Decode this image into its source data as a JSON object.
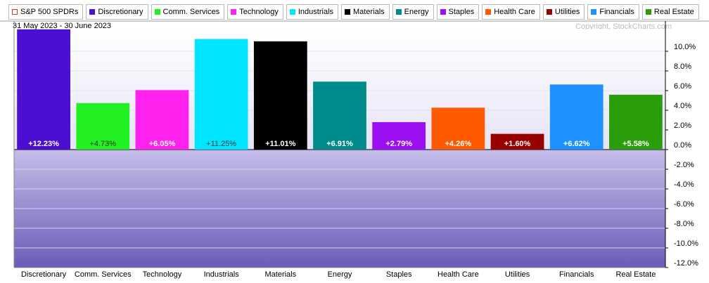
{
  "chart_data": {
    "type": "bar",
    "benchmark": {
      "name": "S&P 500 SPDRs",
      "color": "#e03030"
    },
    "subtitle": "31 May 2023 - 30 June 2023",
    "credit": "Copyright, StockCharts.com",
    "categories": [
      "Discretionary",
      "Comm. Services",
      "Technology",
      "Industrials",
      "Materials",
      "Energy",
      "Staples",
      "Health Care",
      "Utilities",
      "Financials",
      "Real Estate"
    ],
    "colors": [
      "#4a0fd0",
      "#22f022",
      "#ff22ee",
      "#00e5ff",
      "#000000",
      "#008b8b",
      "#9a10f0",
      "#ff5a00",
      "#990000",
      "#1e90ff",
      "#2a9d0a"
    ],
    "values": [
      12.23,
      4.73,
      6.05,
      11.25,
      11.01,
      6.91,
      2.79,
      4.26,
      1.6,
      6.62,
      5.58
    ],
    "value_labels": [
      "+12.23%",
      "+4.73%",
      "+6.05%",
      "+11.25%",
      "+11.01%",
      "+6.91%",
      "+2.79%",
      "+4.26%",
      "+1.60%",
      "+6.62%",
      "+5.58%"
    ],
    "ylim": [
      -12,
      12
    ],
    "yticks": [
      {
        "value": -12,
        "label": "-12.0%"
      },
      {
        "value": -10,
        "label": "-10.0%"
      },
      {
        "value": -8,
        "label": "-8.0%"
      },
      {
        "value": -6,
        "label": "-6.0%"
      },
      {
        "value": -4,
        "label": "-4.0%"
      },
      {
        "value": -2,
        "label": "-2.0%"
      },
      {
        "value": 0,
        "label": "0.0%"
      },
      {
        "value": 2,
        "label": "2.0%"
      },
      {
        "value": 4,
        "label": "4.0%"
      },
      {
        "value": 6,
        "label": "6.0%"
      },
      {
        "value": 8,
        "label": "8.0%"
      },
      {
        "value": 10,
        "label": "10.0%"
      }
    ],
    "grid": true
  }
}
